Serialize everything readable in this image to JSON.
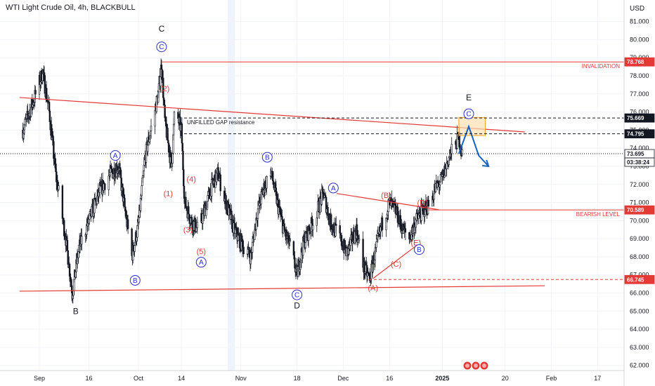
{
  "chart_data": {
    "type": "candlestick",
    "title": "WTI Light Crude Oil, 4h, BLACKBULL",
    "currency": "USD",
    "ylim": [
      61.6,
      81.8
    ],
    "y_ticks": [
      "62.000",
      "63.000",
      "64.000",
      "65.000",
      "66.000",
      "67.000",
      "68.000",
      "69.000",
      "70.000",
      "71.000",
      "72.000",
      "73.000",
      "74.000",
      "75.000",
      "76.000",
      "77.000",
      "78.000",
      "79.000",
      "80.000",
      "81.000"
    ],
    "x_ticks": [
      {
        "label": "Sep",
        "date": "2024-09-01"
      },
      {
        "label": "16",
        "date": "2024-09-16"
      },
      {
        "label": "Oct",
        "date": "2024-10-01"
      },
      {
        "label": "14",
        "date": "2024-10-14"
      },
      {
        "label": "Nov",
        "date": "2024-11-01"
      },
      {
        "label": "18",
        "date": "2024-11-18"
      },
      {
        "label": "Dec",
        "date": "2024-12-02"
      },
      {
        "label": "16",
        "date": "2024-12-16"
      },
      {
        "label": "2025",
        "date": "2025-01-01"
      },
      {
        "label": "20",
        "date": "2025-01-20"
      },
      {
        "label": "Feb",
        "date": "2025-02-03"
      },
      {
        "label": "17",
        "date": "2025-02-17"
      }
    ],
    "price_path": [
      [
        "2024-08-27",
        75.0
      ],
      [
        "2024-08-30",
        76.5
      ],
      [
        "2024-09-02",
        78.2
      ],
      [
        "2024-09-04",
        76.0
      ],
      [
        "2024-09-06",
        72.5
      ],
      [
        "2024-09-09",
        69.0
      ],
      [
        "2024-09-11",
        66.0
      ],
      [
        "2024-09-13",
        68.5
      ],
      [
        "2024-09-16",
        70.0
      ],
      [
        "2024-09-19",
        71.5
      ],
      [
        "2024-09-22",
        72.5
      ],
      [
        "2024-09-25",
        73.0
      ],
      [
        "2024-09-27",
        70.5
      ],
      [
        "2024-09-29",
        68.0
      ],
      [
        "2024-10-01",
        69.8
      ],
      [
        "2024-10-03",
        73.5
      ],
      [
        "2024-10-07",
        77.0
      ],
      [
        "2024-10-08",
        78.7
      ],
      [
        "2024-10-09",
        75.5
      ],
      [
        "2024-10-11",
        73.0
      ],
      [
        "2024-10-12",
        76.2
      ],
      [
        "2024-10-14",
        75.0
      ],
      [
        "2024-10-15",
        71.0
      ],
      [
        "2024-10-17",
        70.0
      ],
      [
        "2024-10-19",
        69.5
      ],
      [
        "2024-10-21",
        70.5
      ],
      [
        "2024-10-23",
        71.8
      ],
      [
        "2024-10-25",
        72.6
      ],
      [
        "2024-10-27",
        71.3
      ],
      [
        "2024-10-30",
        69.5
      ],
      [
        "2024-11-01",
        68.8
      ],
      [
        "2024-11-04",
        68.0
      ],
      [
        "2024-11-06",
        70.5
      ],
      [
        "2024-11-08",
        71.8
      ],
      [
        "2024-11-10",
        72.8
      ],
      [
        "2024-11-12",
        71.0
      ],
      [
        "2024-11-14",
        69.5
      ],
      [
        "2024-11-16",
        68.5
      ],
      [
        "2024-11-18",
        67.0
      ],
      [
        "2024-11-20",
        68.8
      ],
      [
        "2024-11-23",
        70.0
      ],
      [
        "2024-11-26",
        71.5
      ],
      [
        "2024-11-28",
        70.0
      ],
      [
        "2024-12-01",
        69.0
      ],
      [
        "2024-12-03",
        68.2
      ],
      [
        "2024-12-06",
        69.5
      ],
      [
        "2024-12-08",
        67.5
      ],
      [
        "2024-12-10",
        66.8
      ],
      [
        "2024-12-12",
        68.5
      ],
      [
        "2024-12-14",
        70.0
      ],
      [
        "2024-12-16",
        71.0
      ],
      [
        "2024-12-18",
        70.5
      ],
      [
        "2024-12-20",
        69.5
      ],
      [
        "2024-12-22",
        69.0
      ],
      [
        "2024-12-24",
        70.0
      ],
      [
        "2024-12-26",
        70.5
      ],
      [
        "2024-12-28",
        70.9
      ],
      [
        "2024-12-30",
        71.8
      ],
      [
        "2025-01-01",
        72.3
      ],
      [
        "2025-01-03",
        73.5
      ],
      [
        "2025-01-06",
        74.6
      ],
      [
        "2025-01-07",
        73.7
      ]
    ],
    "horizontal_levels": [
      {
        "label": "INVALIDATION",
        "value": 78.768,
        "axis_label": "78.768",
        "style": "solid",
        "color": "#e53935"
      },
      {
        "label": "",
        "value": 75.669,
        "axis_label": "75.669",
        "style": "dashed",
        "color": "#131722"
      },
      {
        "label": "",
        "value": 74.795,
        "axis_label": "74.795",
        "style": "dashed",
        "color": "#131722"
      },
      {
        "label": "",
        "value": 73.695,
        "axis_label": "73.695",
        "style": "dotted",
        "color": "#131722"
      },
      {
        "label": "BEARISH LEVEL",
        "value": 70.589,
        "axis_label": "70.589",
        "style": "solid",
        "color": "#e53935"
      },
      {
        "label": "",
        "value": 66.745,
        "axis_label": "66.745",
        "style": "dashed",
        "color": "#e53935"
      }
    ],
    "last_price": {
      "value": "73.695",
      "countdown": "03:38:24"
    },
    "annotation_text": "UNFILLED GAP resistance",
    "wave_labels": [
      {
        "text": "C",
        "kind": "black",
        "date": "2024-10-08",
        "price": 80.6
      },
      {
        "text": "C",
        "kind": "circle",
        "date": "2024-10-08",
        "price": 79.6
      },
      {
        "text": "(2)",
        "kind": "red",
        "date": "2024-10-09",
        "price": 77.3
      },
      {
        "text": "(1)",
        "kind": "red",
        "date": "2024-10-10",
        "price": 71.5
      },
      {
        "text": "(4)",
        "kind": "red",
        "date": "2024-10-17",
        "price": 72.3
      },
      {
        "text": "(3)",
        "kind": "red",
        "date": "2024-10-16",
        "price": 69.5
      },
      {
        "text": "(5)",
        "kind": "red",
        "date": "2024-10-20",
        "price": 68.3
      },
      {
        "text": "A",
        "kind": "circle",
        "date": "2024-10-20",
        "price": 67.7
      },
      {
        "text": "A",
        "kind": "circle",
        "date": "2024-09-24",
        "price": 73.6
      },
      {
        "text": "B",
        "kind": "circle",
        "date": "2024-09-30",
        "price": 66.7
      },
      {
        "text": "B",
        "kind": "black",
        "date": "2024-09-12",
        "price": 65.0
      },
      {
        "text": "B",
        "kind": "circle",
        "date": "2024-11-09",
        "price": 73.5
      },
      {
        "text": "C",
        "kind": "circle",
        "date": "2024-11-18",
        "price": 65.9
      },
      {
        "text": "D",
        "kind": "black",
        "date": "2024-11-18",
        "price": 65.3
      },
      {
        "text": "A",
        "kind": "circle",
        "date": "2024-11-29",
        "price": 71.8
      },
      {
        "text": "(B)",
        "kind": "red",
        "date": "2024-12-15",
        "price": 71.4
      },
      {
        "text": "(D)",
        "kind": "red",
        "date": "2024-12-26",
        "price": 71.0
      },
      {
        "text": "(E)",
        "kind": "red",
        "date": "2024-12-24",
        "price": 68.8
      },
      {
        "text": "B",
        "kind": "circle",
        "date": "2024-12-25",
        "price": 68.4
      },
      {
        "text": "(C)",
        "kind": "red",
        "date": "2024-12-18",
        "price": 67.6
      },
      {
        "text": "(A)",
        "kind": "red",
        "date": "2024-12-11",
        "price": 66.3
      },
      {
        "text": "E",
        "kind": "black",
        "date": "2025-01-09",
        "price": 76.8
      },
      {
        "text": "C",
        "kind": "circle",
        "date": "2025-01-09",
        "price": 75.9
      }
    ],
    "trendlines": [
      {
        "from": [
          "2024-08-26",
          76.8
        ],
        "to": [
          "2025-01-26",
          74.9
        ],
        "color": "#e53935"
      },
      {
        "from": [
          "2024-08-26",
          66.1
        ],
        "to": [
          "2025-02-01",
          66.4
        ],
        "color": "#e53935"
      },
      {
        "from": [
          "2024-11-30",
          71.5
        ],
        "to": [
          "2024-12-31",
          70.6
        ],
        "color": "#e53935"
      },
      {
        "from": [
          "2024-12-11",
          66.8
        ],
        "to": [
          "2024-12-24",
          68.6
        ],
        "color": "#e53935"
      }
    ],
    "projection": [
      [
        "2025-01-06",
        73.7
      ],
      [
        "2025-01-09",
        75.2
      ],
      [
        "2025-01-12",
        73.6
      ],
      [
        "2025-01-15",
        73.0
      ]
    ],
    "resistance_box": {
      "from": [
        "2025-01-06",
        75.7
      ],
      "to": [
        "2025-01-14",
        74.7
      ]
    }
  }
}
